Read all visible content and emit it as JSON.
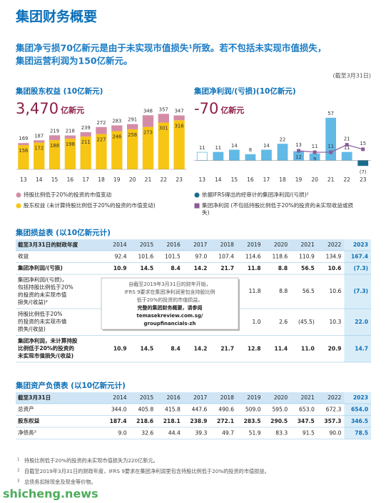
{
  "header": {
    "title": "集团财务概要",
    "subtitle": [
      "集团净亏损70亿新元是由于未实现市值损失¹所致。若不包括未实现市值损失，",
      "集团运营利润为150亿新元。"
    ],
    "as_of": "(截至3月31日)"
  },
  "chart_data": [
    {
      "type": "stacked_bar",
      "title": "集团股东权益 (10亿新元)",
      "headline": "3,470",
      "headline_unit": "亿新元",
      "categories": [
        "13",
        "14",
        "15",
        "16",
        "17",
        "18",
        "19",
        "20",
        "21",
        "22",
        "23"
      ],
      "series": [
        {
          "name": "股东权益 (未计算持股比例低于20%的投资的市值变动)",
          "color": "#f7c514",
          "values": [
            156,
            172,
            188,
            198,
            211,
            227,
            246,
            258,
            273,
            301,
            316
          ]
        },
        {
          "name": "持股比例低于20%的投资的市值变动",
          "color": "#d48ca6",
          "values": [
            13,
            15,
            31,
            20,
            28,
            45,
            37,
            33,
            75,
            56,
            31
          ]
        }
      ],
      "totals": [
        169,
        187,
        219,
        218,
        239,
        272,
        283,
        291,
        348,
        357,
        347
      ],
      "ylim": [
        0,
        400
      ]
    },
    {
      "type": "bar_line",
      "title": "集团净利润/(亏损)(10亿新元)",
      "headline": "-70",
      "headline_unit": "亿新元",
      "categories": [
        "13",
        "14",
        "15",
        "16",
        "17",
        "18",
        "19",
        "20",
        "21",
        "22",
        "23"
      ],
      "series": [
        {
          "name": "依据IFRS得出的经审计的集团净利润/(亏损)²",
          "type": "bar",
          "color": "#1a6c8c",
          "bar_color": "#62b9e6",
          "highlight_last": true,
          "values": [
            11,
            11,
            14,
            8,
            14,
            22,
            12,
            9,
            57,
            11,
            -7
          ],
          "value_labels": [
            "11",
            "11",
            "14",
            "8",
            "14",
            "22",
            "12",
            "9",
            "57",
            "11",
            "(7)"
          ]
        },
        {
          "name": "集团净利润 (不包括持股比例低于20%的投资的未实现收益或损失)",
          "type": "line",
          "color": "#8a5b98",
          "values": [
            null,
            null,
            null,
            null,
            null,
            null,
            13,
            11,
            11,
            21,
            15
          ]
        }
      ],
      "ylim": [
        -12,
        62
      ]
    }
  ],
  "income_table": {
    "title": "集团损益表 (以10亿新元计)",
    "columns": [
      "截至3月31日的财政年度",
      "2014",
      "2015",
      "2016",
      "2017",
      "2018",
      "2019",
      "2020",
      "2021",
      "2022",
      "2023"
    ],
    "rows": [
      {
        "label": [
          "收益"
        ],
        "bold": false,
        "values": [
          "92.4",
          "101.6",
          "101.5",
          "97.0",
          "107.4",
          "114.6",
          "118.6",
          "110.9",
          "134.9",
          "167.4"
        ]
      },
      {
        "label": [
          "集团净利润/(亏损)"
        ],
        "bold": true,
        "values": [
          "10.9",
          "14.5",
          "8.4",
          "14.2",
          "21.7",
          "11.8",
          "8.8",
          "56.5",
          "10.6",
          "(7.3)"
        ]
      },
      {
        "label": [
          "集团净利润/(亏损)，",
          "包括持股比例低于20%",
          "的投资的未实现市值",
          "损失/(收益)²"
        ],
        "bold": false,
        "values": [
          null,
          null,
          null,
          null,
          null,
          "11.8",
          "8.8",
          "56.5",
          "10.6",
          "(7.3)"
        ]
      },
      {
        "label": [
          "持股比例低于20%",
          "的投资的未实现市值",
          "损失/(收益)"
        ],
        "bold": false,
        "values": [
          null,
          null,
          null,
          null,
          null,
          "1.0",
          "2.6",
          "(45.5)",
          "10.3",
          "22.0"
        ]
      },
      {
        "label": [
          "集团净利润，未计算持股",
          "比例低于20%的投资的",
          "未实现市值损失/(收益)"
        ],
        "bold": true,
        "values": [
          "10.9",
          "14.5",
          "8.4",
          "14.2",
          "21.7",
          "12.8",
          "11.4",
          "11.0",
          "20.9",
          "14.7"
        ]
      }
    ],
    "note": [
      "自截至2019年3月31日的财年开始，",
      "IFRS 9要求在集团净利润里包含持股比例",
      "低于20%的投资的市值损益。",
      "完整的集团财务概要，请参阅",
      "temasekreview.com.sg/",
      "groupfinancials-zh"
    ]
  },
  "balance_table": {
    "title": "集团资产负债表 (以10亿新元计)",
    "columns": [
      "截至3月31日",
      "2014",
      "2015",
      "2016",
      "2017",
      "2018",
      "2019",
      "2020",
      "2021",
      "2022",
      "2023"
    ],
    "rows": [
      {
        "label": [
          "总资产"
        ],
        "bold": false,
        "values": [
          "344.0",
          "405.8",
          "415.8",
          "447.6",
          "490.6",
          "509.0",
          "595.0",
          "653.0",
          "672.3",
          "654.0"
        ]
      },
      {
        "label": [
          "股东权益"
        ],
        "bold": true,
        "values": [
          "187.4",
          "218.6",
          "218.1",
          "238.9",
          "272.1",
          "283.5",
          "290.5",
          "347.5",
          "357.3",
          "346.5"
        ]
      },
      {
        "label": [
          "净债务³"
        ],
        "bold": false,
        "values": [
          "9.0",
          "32.6",
          "44.4",
          "39.3",
          "49.7",
          "51.9",
          "83.3",
          "91.5",
          "90.0",
          "78.5"
        ]
      }
    ]
  },
  "footnotes": [
    {
      "mark": "1",
      "text": "持股比例低于20%的投资的未实现市值损失为220亿新元。"
    },
    {
      "mark": "2",
      "text": "自截至2019年3月31日的财政年度，IFRS 9要求在集团净利润里包含持股比例低于20%的投资的市值损益。"
    },
    {
      "mark": "3",
      "text": "总债务扣除现金及现金等价物。"
    }
  ],
  "watermark": "shicheng.news"
}
